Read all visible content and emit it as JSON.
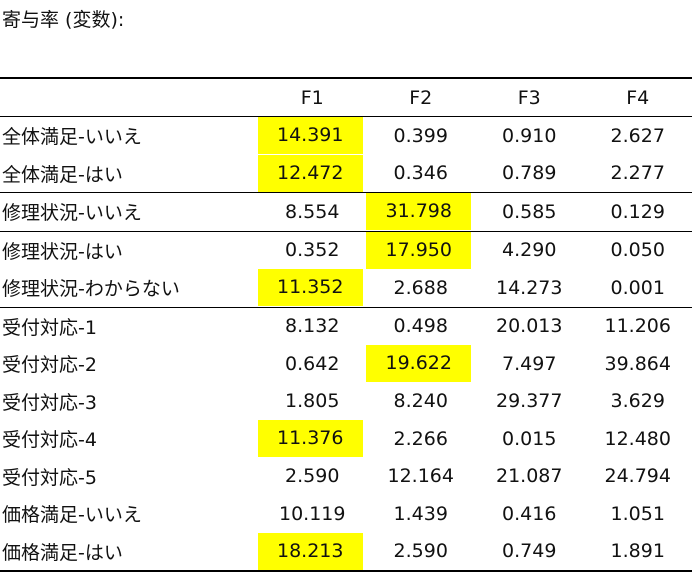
{
  "title": "寄与率 (変数):",
  "columns": [
    "F1",
    "F2",
    "F3",
    "F4"
  ],
  "highlight_color": "#ffff00",
  "rows": [
    {
      "label": "全体満足-いいえ",
      "values": [
        "14.391",
        "0.399",
        "0.910",
        "2.627"
      ],
      "highlight": [
        true,
        false,
        false,
        false
      ],
      "group_start": true
    },
    {
      "label": "全体満足-はい",
      "values": [
        "12.472",
        "0.346",
        "0.789",
        "2.277"
      ],
      "highlight": [
        true,
        false,
        false,
        false
      ],
      "group_start": false
    },
    {
      "label": "修理状況-いいえ",
      "values": [
        "8.554",
        "31.798",
        "0.585",
        "0.129"
      ],
      "highlight": [
        false,
        true,
        false,
        false
      ],
      "group_start": true
    },
    {
      "label": "修理状況-はい",
      "values": [
        "0.352",
        "17.950",
        "4.290",
        "0.050"
      ],
      "highlight": [
        false,
        true,
        false,
        false
      ],
      "group_start": true
    },
    {
      "label": "修理状況-わからない",
      "values": [
        "11.352",
        "2.688",
        "14.273",
        "0.001"
      ],
      "highlight": [
        true,
        false,
        false,
        false
      ],
      "group_start": false
    },
    {
      "label": "受付対応-1",
      "values": [
        "8.132",
        "0.498",
        "20.013",
        "11.206"
      ],
      "highlight": [
        false,
        false,
        false,
        false
      ],
      "group_start": true
    },
    {
      "label": "受付対応-2",
      "values": [
        "0.642",
        "19.622",
        "7.497",
        "39.864"
      ],
      "highlight": [
        false,
        true,
        false,
        false
      ],
      "group_start": false
    },
    {
      "label": "受付対応-3",
      "values": [
        "1.805",
        "8.240",
        "29.377",
        "3.629"
      ],
      "highlight": [
        false,
        false,
        false,
        false
      ],
      "group_start": false
    },
    {
      "label": "受付対応-4",
      "values": [
        "11.376",
        "2.266",
        "0.015",
        "12.480"
      ],
      "highlight": [
        true,
        false,
        false,
        false
      ],
      "group_start": false
    },
    {
      "label": "受付対応-5",
      "values": [
        "2.590",
        "12.164",
        "21.087",
        "24.794"
      ],
      "highlight": [
        false,
        false,
        false,
        false
      ],
      "group_start": false
    },
    {
      "label": "価格満足-いいえ",
      "values": [
        "10.119",
        "1.439",
        "0.416",
        "1.051"
      ],
      "highlight": [
        false,
        false,
        false,
        false
      ],
      "group_start": false
    },
    {
      "label": "価格満足-はい",
      "values": [
        "18.213",
        "2.590",
        "0.749",
        "1.891"
      ],
      "highlight": [
        true,
        false,
        false,
        false
      ],
      "group_start": false
    }
  ]
}
